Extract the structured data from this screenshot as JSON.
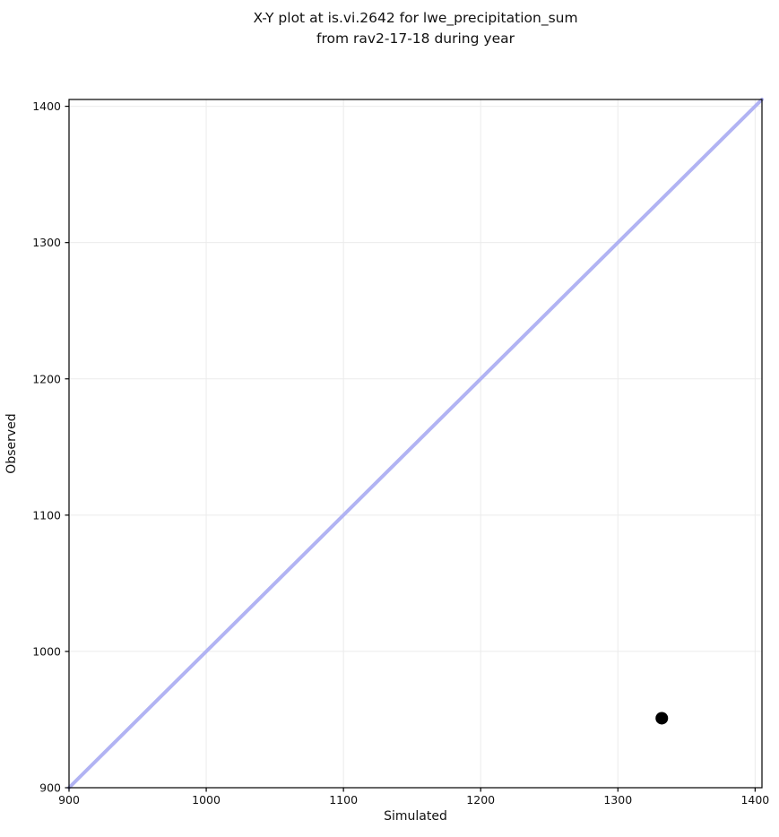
{
  "chart_data": {
    "type": "scatter",
    "title": "X-Y plot at is.vi.2642 for lwe_precipitation_sum\nfrom rav2-17-18 during year",
    "title_lines": [
      "X-Y plot at is.vi.2642 for lwe_precipitation_sum",
      "from rav2-17-18 during year"
    ],
    "xlabel": "Simulated",
    "ylabel": "Observed",
    "xlim": [
      900,
      1405
    ],
    "ylim": [
      900,
      1405
    ],
    "xticks": [
      900,
      1000,
      1100,
      1200,
      1300,
      1400
    ],
    "yticks": [
      900,
      1000,
      1100,
      1200,
      1300,
      1400
    ],
    "grid": true,
    "legend": false,
    "series": [
      {
        "name": "one-to-one-line",
        "type": "line",
        "x": [
          900,
          1405
        ],
        "y": [
          900,
          1405
        ],
        "color": "#b1b3f3",
        "width": 4
      },
      {
        "name": "observations",
        "type": "scatter",
        "points": [
          {
            "x": 1332,
            "y": 951
          }
        ],
        "color": "#000000",
        "marker_radius": 7
      }
    ],
    "colors": {
      "grid": "#ebebeb",
      "frame": "#000000",
      "text": "#111111",
      "background": "#ffffff"
    }
  }
}
